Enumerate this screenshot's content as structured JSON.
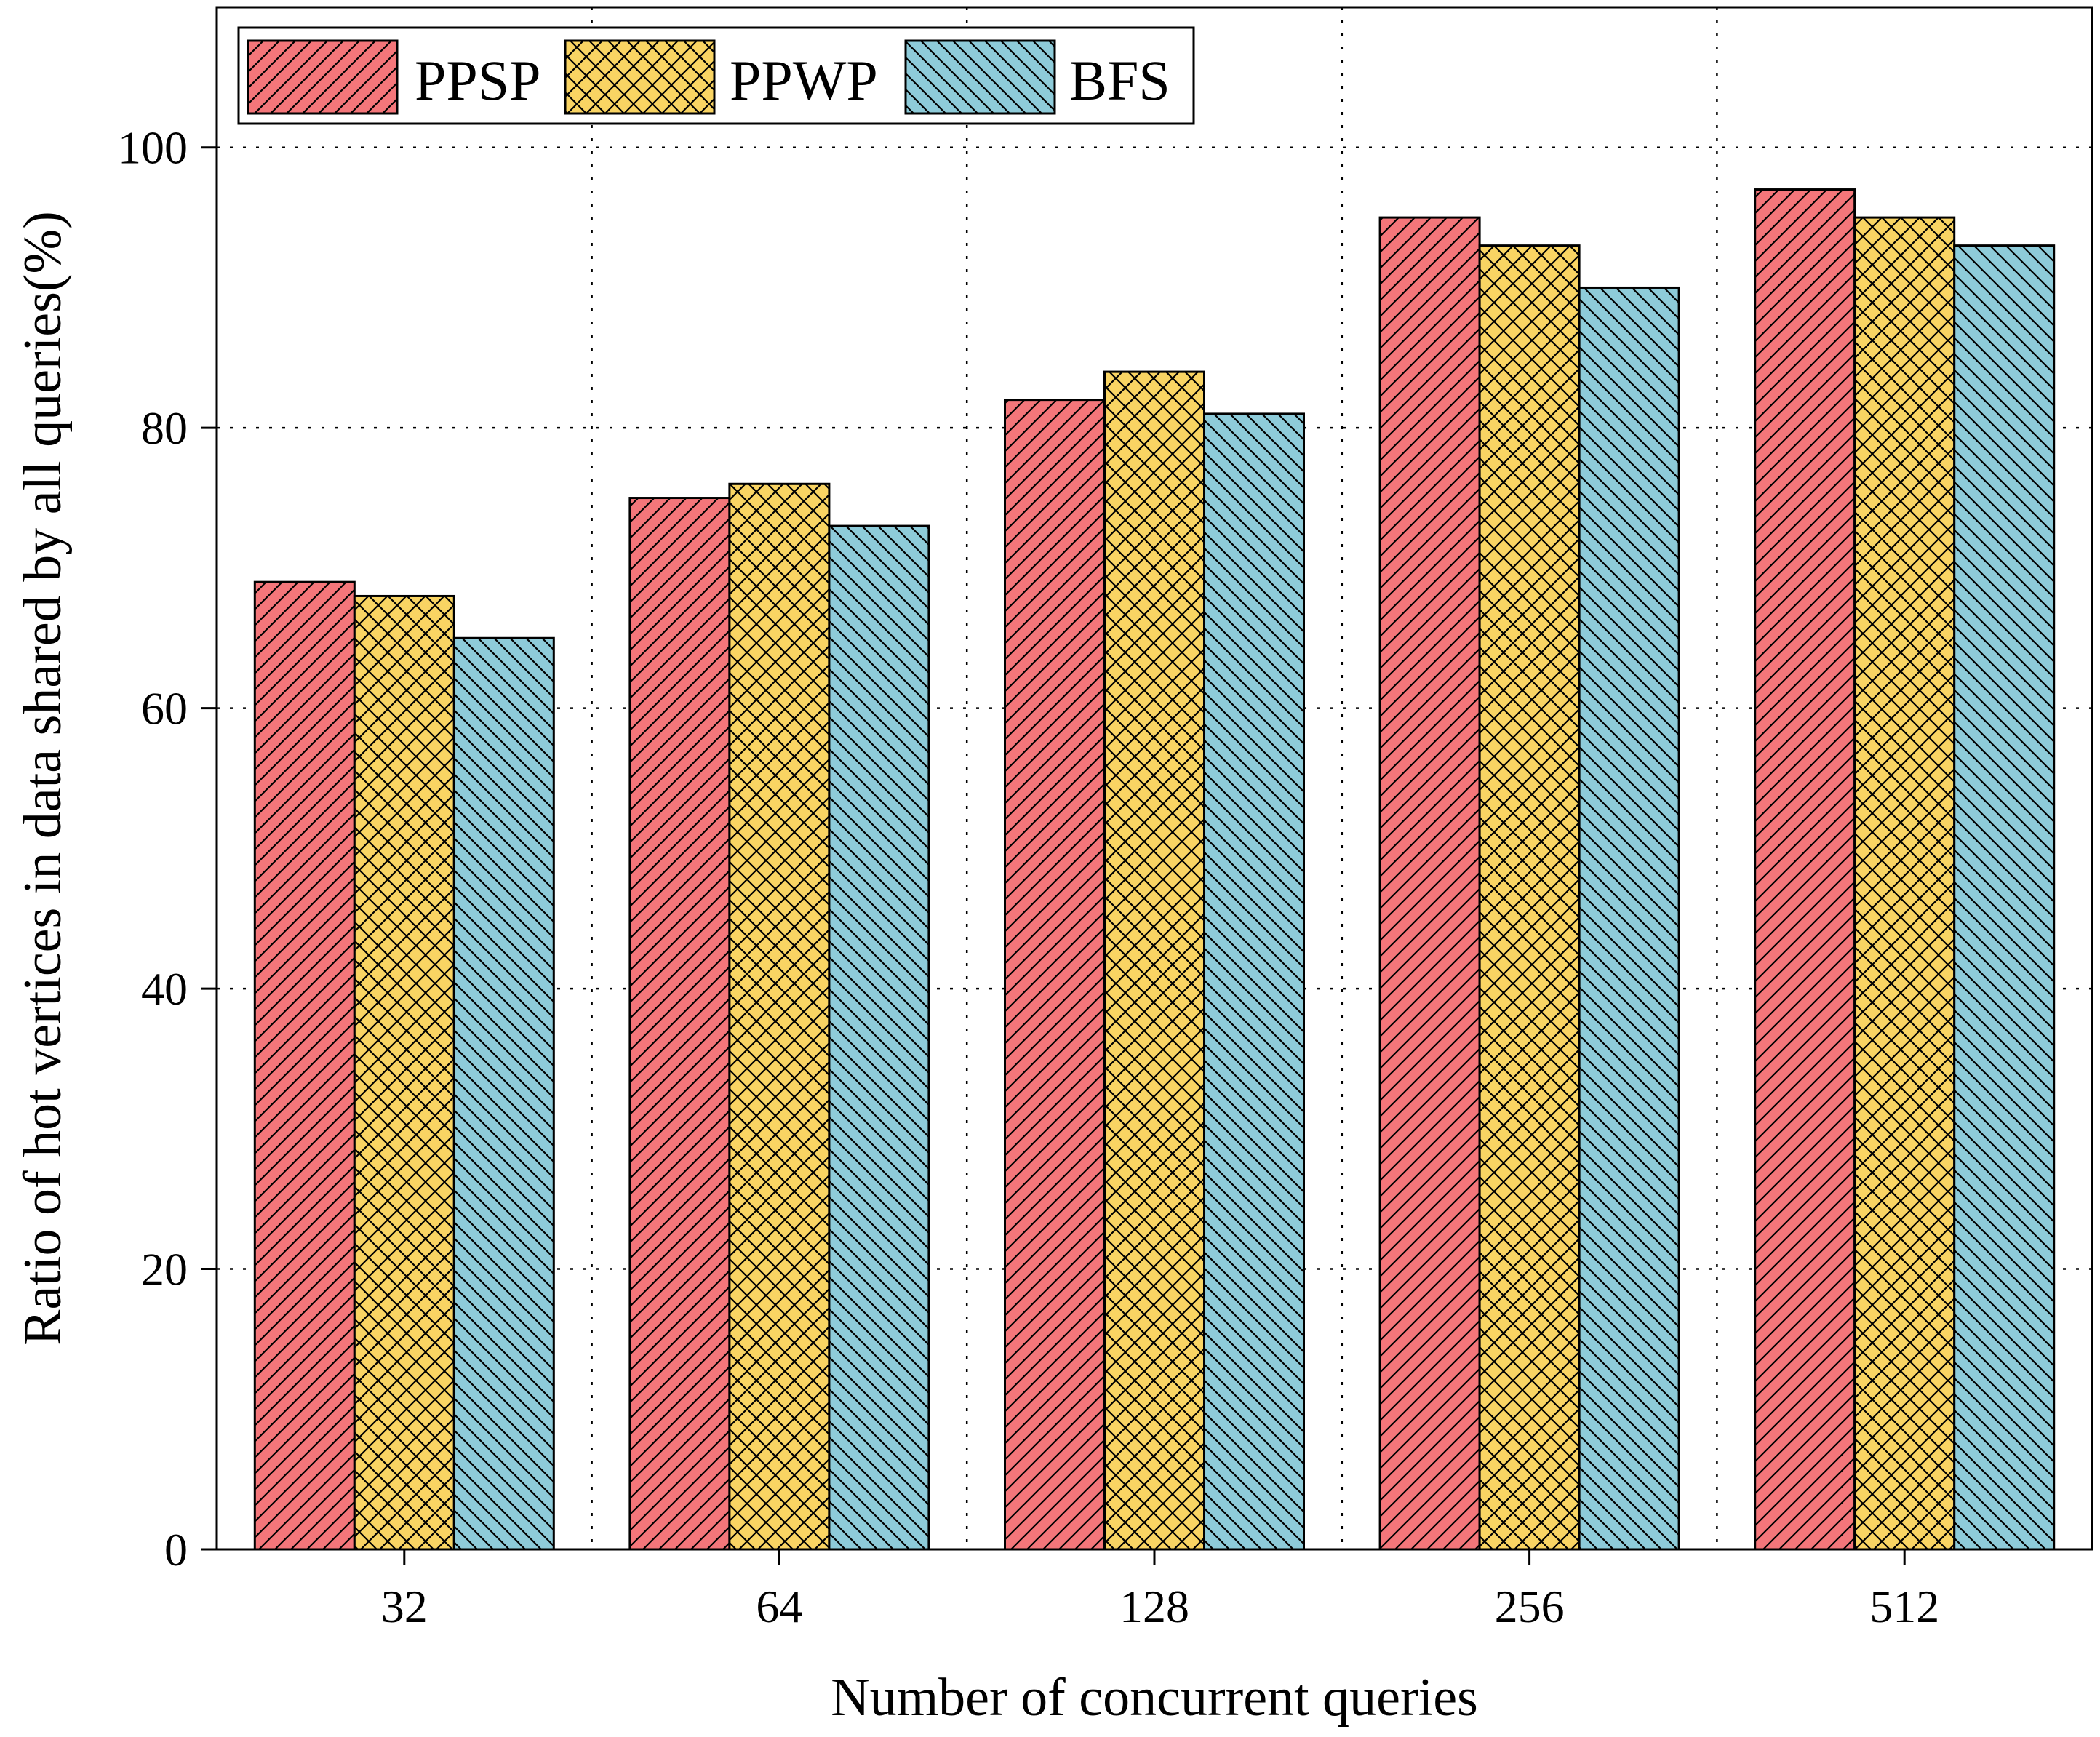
{
  "chart_data": {
    "type": "bar",
    "title": "",
    "xlabel": "Number of concurrent queries",
    "ylabel": "Ratio of hot vertices in data shared by all queries(%)",
    "categories": [
      "32",
      "64",
      "128",
      "256",
      "512"
    ],
    "ylim": [
      0,
      110
    ],
    "yticks": [
      0,
      20,
      40,
      60,
      80,
      100
    ],
    "grid": true,
    "legend_position": "top-left",
    "series": [
      {
        "name": "PPSP",
        "color": "#f4767a",
        "hatch": "diagonal",
        "values": [
          69,
          75,
          82,
          95,
          97
        ]
      },
      {
        "name": "PPWP",
        "color": "#f9d463",
        "hatch": "crosshatch",
        "values": [
          68,
          76,
          84,
          93,
          95
        ]
      },
      {
        "name": "BFS",
        "color": "#8ecbd9",
        "hatch": "back-diagonal",
        "values": [
          65,
          73,
          81,
          90,
          93
        ]
      }
    ]
  }
}
